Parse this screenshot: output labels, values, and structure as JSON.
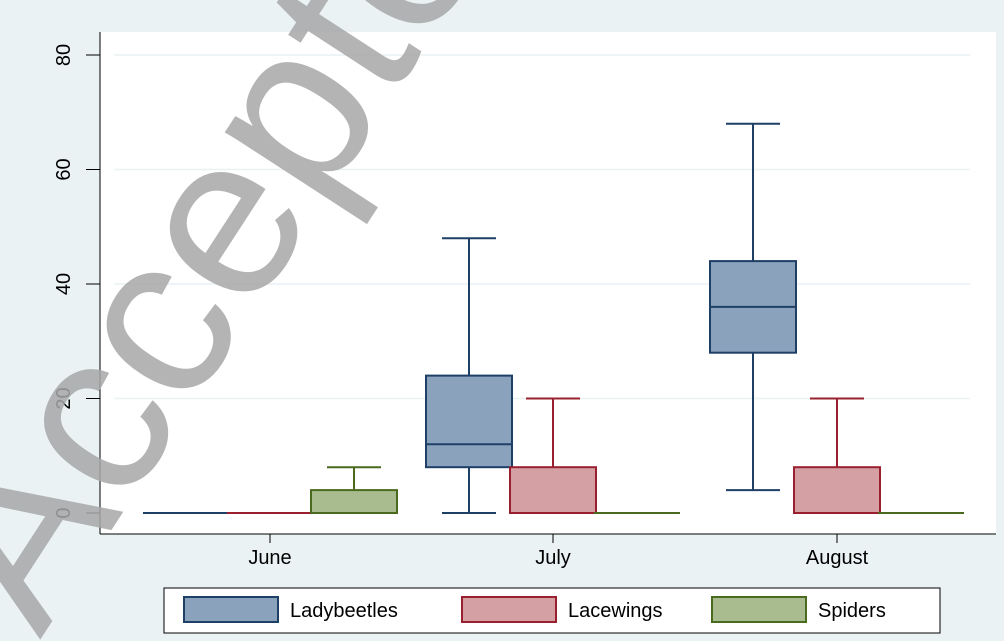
{
  "chart_data": {
    "type": "box",
    "categories": [
      "June",
      "July",
      "August"
    ],
    "y_ticks": [
      0,
      20,
      40,
      60,
      80
    ],
    "ylim": [
      0,
      84
    ],
    "grid": true,
    "legend_position": "bottom",
    "series": [
      {
        "name": "Ladybeetles",
        "color": "#8aa2bb",
        "stroke": "#1e3f66",
        "boxes": [
          {
            "min": 0,
            "q1": 0,
            "median": 0,
            "q3": 0,
            "max": 0
          },
          {
            "min": 0,
            "q1": 8,
            "median": 12,
            "q3": 24,
            "max": 48
          },
          {
            "min": 4,
            "q1": 28,
            "median": 36,
            "q3": 44,
            "max": 68
          }
        ]
      },
      {
        "name": "Lacewings",
        "color": "#d4a0a4",
        "stroke": "#9a2030",
        "boxes": [
          {
            "min": 0,
            "q1": 0,
            "median": 0,
            "q3": 0,
            "max": 0
          },
          {
            "min": 0,
            "q1": 0,
            "median": 0,
            "q3": 8,
            "max": 20
          },
          {
            "min": 0,
            "q1": 0,
            "median": 0,
            "q3": 8,
            "max": 20
          }
        ]
      },
      {
        "name": "Spiders",
        "color": "#a9bc8f",
        "stroke": "#4a6a1e",
        "boxes": [
          {
            "min": 0,
            "q1": 0,
            "median": 0,
            "q3": 4,
            "max": 8
          },
          {
            "min": 0,
            "q1": 0,
            "median": 0,
            "q3": 0,
            "max": 0
          },
          {
            "min": 0,
            "q1": 0,
            "median": 0,
            "q3": 0,
            "max": 0
          }
        ]
      }
    ]
  },
  "watermark": "Accepted Manuscript",
  "colors": {
    "outer_background": "#eaf2f3",
    "plot_background": "#ffffff",
    "grid": "#eaf2f3"
  }
}
